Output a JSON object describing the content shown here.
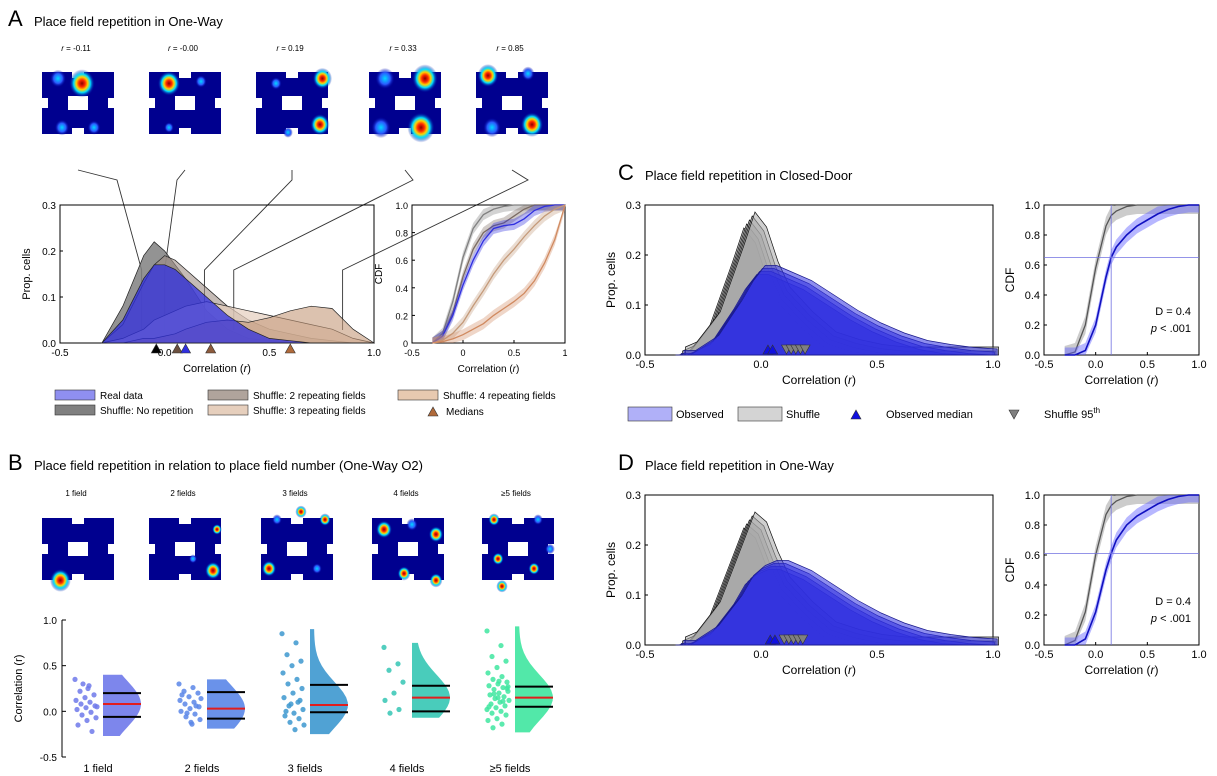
{
  "colors": {
    "real": "#2f2fe0",
    "real_light": "#8f8ff0",
    "shuffle_dark": "#808080",
    "shuffle_light": "#c8c8c8",
    "tan": "#c49a7a",
    "tan_light": "#e6cfbd",
    "brown": "#8c5a3c",
    "median_tri": "#b06a3a",
    "red": "#e21d1d",
    "group_colors": [
      "#6f79ea",
      "#5a86e8",
      "#3d98cf",
      "#35c6b4",
      "#3fe6a0"
    ]
  },
  "panelA": {
    "letter": "A",
    "title": "Place field repetition in One-Way",
    "map_labels": [
      "r = -0.11",
      "r = -0.00",
      "r = 0.19",
      "r = 0.33",
      "r = 0.85"
    ],
    "density": {
      "ylabel": "Prop. cells",
      "xlabel": "Correlation (r)",
      "yticks": [
        "0.0",
        "0.1",
        "0.2",
        "0.3"
      ],
      "xticks": [
        "-0.5",
        "0.0",
        "0.5",
        "1.0"
      ]
    },
    "cdf": {
      "ylabel": "CDF",
      "xlabel": "Correlation (r)",
      "yticks": [
        "0",
        "0.2",
        "0.4",
        "0.6",
        "0.8",
        "1.0"
      ],
      "xticks": [
        "-0.5",
        "0",
        "0.5",
        "1"
      ]
    },
    "legend": [
      {
        "label": "Real data",
        "swatch": "real_light"
      },
      {
        "label": "Shuffle: No repetition",
        "swatch": "shuffle_dark"
      },
      {
        "label": "Shuffle: 2 repeating fields",
        "swatch": "gray_tan"
      },
      {
        "label": "Shuffle: 3 repeating fields",
        "swatch": "tan_light"
      },
      {
        "label": "Shuffle: 4 repeating fields",
        "swatch": "tan"
      },
      {
        "label": "Medians",
        "swatch": "triangle"
      }
    ]
  },
  "panelB": {
    "letter": "B",
    "title": "Place field repetition in relation to place field number (One-Way O2)",
    "map_labels": [
      "1 field",
      "2 fields",
      "3 fields",
      "4 fields",
      "≥5 fields"
    ],
    "ylabel": "Correlation (r)",
    "yticks": [
      "-0.5",
      "0.0",
      "0.5",
      "1.0"
    ],
    "categories": [
      "1 field",
      "2 fields",
      "3 fields",
      "4 fields",
      "≥5 fields"
    ]
  },
  "panelC": {
    "letter": "C",
    "title": "Place field repetition in Closed-Door",
    "density_ylabel": "Prop. cells",
    "density_xlabel": "Correlation (r)",
    "density_yticks": [
      "0.0",
      "0.1",
      "0.2",
      "0.3"
    ],
    "density_xticks": [
      "-0.5",
      "0.0",
      "0.5",
      "1.0"
    ],
    "cdf_ylabel": "CDF",
    "cdf_xlabel": "Correlation (r)",
    "cdf_yticks": [
      "0.0",
      "0.2",
      "0.4",
      "0.6",
      "0.8",
      "1.0"
    ],
    "cdf_xticks": [
      "-0.5",
      "0.0",
      "0.5",
      "1.0"
    ],
    "stat_d": "D = 0.4",
    "stat_p": "p < .001",
    "legend": [
      "Observed",
      "Shuffle",
      "Observed median",
      "Shuffle 95th"
    ]
  },
  "panelD": {
    "letter": "D",
    "title": "Place field repetition in One-Way",
    "density_ylabel": "Prop. cells",
    "density_xlabel": "Correlation (r)",
    "density_yticks": [
      "0.0",
      "0.1",
      "0.2",
      "0.3"
    ],
    "density_xticks": [
      "-0.5",
      "0.0",
      "0.5",
      "1.0"
    ],
    "cdf_ylabel": "CDF",
    "cdf_xlabel": "Correlation (r)",
    "cdf_yticks": [
      "0.0",
      "0.2",
      "0.4",
      "0.6",
      "0.8",
      "1.0"
    ],
    "cdf_xticks": [
      "-0.5",
      "0.0",
      "0.5",
      "1.0"
    ],
    "stat_d": "D = 0.4",
    "stat_p": "p < .001"
  },
  "chart_data": [
    {
      "panel": "A-density",
      "type": "area",
      "xlabel": "Correlation (r)",
      "ylabel": "Prop. cells",
      "xlim": [
        -0.5,
        1.0
      ],
      "ylim": [
        0,
        0.3
      ],
      "x": [
        -0.3,
        -0.2,
        -0.1,
        -0.05,
        0.0,
        0.05,
        0.1,
        0.2,
        0.3,
        0.4,
        0.5,
        0.6,
        0.7,
        0.8,
        0.9,
        1.0
      ],
      "series": [
        {
          "name": "Shuffle: No repetition",
          "values": [
            0.0,
            0.08,
            0.19,
            0.22,
            0.2,
            0.17,
            0.14,
            0.07,
            0.03,
            0.01,
            0.005,
            0.0,
            0.0,
            0.0,
            0.0,
            0.0
          ]
        },
        {
          "name": "Shuffle: 2 repeating fields",
          "values": [
            0.0,
            0.04,
            0.13,
            0.17,
            0.19,
            0.18,
            0.16,
            0.12,
            0.08,
            0.05,
            0.03,
            0.02,
            0.01,
            0.005,
            0.0,
            0.0
          ]
        },
        {
          "name": "Shuffle: 3 repeating fields",
          "values": [
            0.0,
            0.01,
            0.03,
            0.05,
            0.06,
            0.07,
            0.08,
            0.09,
            0.08,
            0.07,
            0.06,
            0.05,
            0.04,
            0.03,
            0.01,
            0.0
          ]
        },
        {
          "name": "Shuffle: 4 repeating fields",
          "values": [
            0.0,
            0.0,
            0.01,
            0.01,
            0.015,
            0.02,
            0.03,
            0.045,
            0.05,
            0.045,
            0.055,
            0.07,
            0.08,
            0.075,
            0.03,
            0.0
          ]
        },
        {
          "name": "Real data",
          "values": [
            0.0,
            0.05,
            0.14,
            0.17,
            0.17,
            0.16,
            0.14,
            0.1,
            0.06,
            0.03,
            0.01,
            0.005,
            0.0,
            0.0,
            0.0,
            0.0
          ]
        }
      ],
      "medians": [
        {
          "name": "Shuffle: No repetition",
          "x": -0.04
        },
        {
          "name": "Shuffle: 2 repeating fields",
          "x": 0.06
        },
        {
          "name": "Real data",
          "x": 0.1
        },
        {
          "name": "Shuffle: 3 repeating fields",
          "x": 0.22
        },
        {
          "name": "Shuffle: 4 repeating fields",
          "x": 0.6
        }
      ]
    },
    {
      "panel": "A-cdf",
      "type": "line",
      "xlabel": "Correlation (r)",
      "ylabel": "CDF",
      "xlim": [
        -0.5,
        1.0
      ],
      "ylim": [
        0,
        1.0
      ],
      "x": [
        -0.3,
        -0.2,
        -0.1,
        0.0,
        0.1,
        0.2,
        0.3,
        0.4,
        0.5,
        0.6,
        0.7,
        0.8,
        0.9,
        1.0
      ],
      "series": [
        {
          "name": "Shuffle: No repetition",
          "values": [
            0.0,
            0.07,
            0.3,
            0.62,
            0.83,
            0.93,
            0.97,
            0.99,
            1.0,
            1.0,
            1.0,
            1.0,
            1.0,
            1.0
          ]
        },
        {
          "name": "Shuffle: 2 repeating fields",
          "values": [
            0.0,
            0.05,
            0.22,
            0.48,
            0.68,
            0.8,
            0.85,
            0.87,
            0.92,
            0.97,
            1.0,
            1.0,
            1.0,
            1.0
          ]
        },
        {
          "name": "Real data",
          "values": [
            0.0,
            0.05,
            0.2,
            0.42,
            0.6,
            0.74,
            0.83,
            0.85,
            0.86,
            0.9,
            0.96,
            0.99,
            1.0,
            1.0
          ]
        },
        {
          "name": "Shuffle: 3 repeating fields",
          "values": [
            0.0,
            0.02,
            0.07,
            0.15,
            0.27,
            0.38,
            0.5,
            0.6,
            0.68,
            0.77,
            0.85,
            0.92,
            0.97,
            1.0
          ]
        },
        {
          "name": "Shuffle: 4 repeating fields",
          "values": [
            0.0,
            0.01,
            0.03,
            0.06,
            0.1,
            0.14,
            0.2,
            0.25,
            0.3,
            0.36,
            0.45,
            0.58,
            0.75,
            1.0
          ]
        }
      ]
    },
    {
      "panel": "B",
      "type": "scatter",
      "ylabel": "Correlation (r)",
      "ylim": [
        -0.5,
        1.0
      ],
      "categories": [
        "1 field",
        "2 fields",
        "3 fields",
        "4 fields",
        "≥5 fields"
      ],
      "medians": [
        0.08,
        0.03,
        0.07,
        0.15,
        0.15
      ],
      "q1": [
        -0.06,
        -0.08,
        -0.01,
        0.0,
        0.05
      ],
      "q3": [
        0.2,
        0.21,
        0.29,
        0.28,
        0.27
      ],
      "points": [
        [
          0.35,
          0.28,
          0.22,
          0.18,
          0.15,
          0.12,
          0.1,
          0.08,
          0.06,
          0.04,
          0.02,
          -0.01,
          -0.04,
          -0.07,
          -0.1,
          -0.15,
          -0.22,
          0.3,
          0.05,
          0.25
        ],
        [
          0.3,
          0.26,
          0.22,
          0.2,
          0.16,
          0.12,
          0.1,
          0.08,
          0.05,
          0.03,
          0.0,
          -0.03,
          -0.06,
          -0.09,
          -0.12,
          0.18,
          0.06,
          -0.02,
          0.14,
          -0.14
        ],
        [
          0.85,
          0.75,
          0.62,
          0.55,
          0.5,
          0.42,
          0.35,
          0.3,
          0.25,
          0.2,
          0.15,
          0.1,
          0.06,
          0.02,
          -0.02,
          -0.05,
          -0.08,
          -0.12,
          -0.15,
          -0.2,
          0.0,
          0.12,
          0.08
        ],
        [
          0.7,
          0.52,
          0.45,
          0.32,
          0.2,
          0.12,
          0.02,
          -0.02
        ],
        [
          0.88,
          0.72,
          0.6,
          0.55,
          0.48,
          0.42,
          0.38,
          0.35,
          0.32,
          0.3,
          0.28,
          0.26,
          0.24,
          0.22,
          0.2,
          0.18,
          0.16,
          0.14,
          0.12,
          0.1,
          0.08,
          0.06,
          0.04,
          0.02,
          0.0,
          -0.02,
          -0.04,
          -0.08,
          -0.1,
          -0.14,
          -0.18,
          0.25,
          0.15,
          0.05,
          0.11,
          0.19,
          0.27,
          0.33
        ]
      ]
    },
    {
      "panel": "C-density",
      "type": "area",
      "xlabel": "Correlation (r)",
      "ylabel": "Prop. cells",
      "xlim": [
        -0.5,
        1.0
      ],
      "ylim": [
        0,
        0.3
      ],
      "x": [
        -0.35,
        -0.3,
        -0.2,
        -0.1,
        -0.05,
        0.0,
        0.05,
        0.1,
        0.2,
        0.3,
        0.4,
        0.5,
        0.6,
        0.7,
        0.8,
        0.9,
        1.0
      ],
      "series": [
        {
          "name": "Shuffle",
          "values": [
            0.0,
            0.01,
            0.07,
            0.2,
            0.27,
            0.24,
            0.17,
            0.12,
            0.07,
            0.03,
            0.015,
            0.005,
            0.0,
            0.0,
            0.0,
            0.0,
            0.0
          ]
        },
        {
          "name": "Observed",
          "values": [
            0.0,
            0.0,
            0.03,
            0.1,
            0.14,
            0.17,
            0.17,
            0.16,
            0.14,
            0.11,
            0.08,
            0.055,
            0.035,
            0.02,
            0.012,
            0.006,
            0.003
          ]
        }
      ],
      "observed_median": [
        0.03,
        0.05
      ],
      "shuffle_95th": [
        0.11,
        0.13,
        0.15,
        0.17,
        0.19
      ]
    },
    {
      "panel": "C-cdf",
      "type": "line",
      "xlabel": "Correlation (r)",
      "ylabel": "CDF",
      "xlim": [
        -0.5,
        1.0
      ],
      "ylim": [
        0,
        1.0
      ],
      "x": [
        -0.3,
        -0.2,
        -0.1,
        0.0,
        0.1,
        0.15,
        0.2,
        0.3,
        0.4,
        0.5,
        0.6,
        0.7,
        0.8,
        0.9,
        1.0
      ],
      "series": [
        {
          "name": "Shuffle",
          "values": [
            0.0,
            0.02,
            0.2,
            0.58,
            0.86,
            0.93,
            0.96,
            0.99,
            1.0,
            1.0,
            1.0,
            1.0,
            1.0,
            1.0,
            1.0
          ]
        },
        {
          "name": "Observed",
          "values": [
            0.0,
            0.0,
            0.03,
            0.2,
            0.52,
            0.65,
            0.72,
            0.8,
            0.86,
            0.9,
            0.94,
            0.97,
            0.99,
            1.0,
            1.0
          ]
        }
      ],
      "reference": {
        "x": 0.15,
        "y": 0.65
      }
    },
    {
      "panel": "D-density",
      "type": "area",
      "xlabel": "Correlation (r)",
      "ylabel": "Prop. cells",
      "xlim": [
        -0.5,
        1.0
      ],
      "ylim": [
        0,
        0.3
      ],
      "x": [
        -0.35,
        -0.3,
        -0.2,
        -0.1,
        -0.05,
        0.0,
        0.05,
        0.1,
        0.2,
        0.3,
        0.4,
        0.5,
        0.6,
        0.7,
        0.8,
        0.9,
        1.0
      ],
      "series": [
        {
          "name": "Shuffle",
          "values": [
            0.0,
            0.01,
            0.07,
            0.19,
            0.25,
            0.23,
            0.17,
            0.12,
            0.07,
            0.03,
            0.015,
            0.005,
            0.0,
            0.0,
            0.0,
            0.0,
            0.0
          ]
        },
        {
          "name": "Observed",
          "values": [
            0.0,
            0.0,
            0.03,
            0.09,
            0.13,
            0.15,
            0.16,
            0.16,
            0.14,
            0.11,
            0.08,
            0.055,
            0.035,
            0.02,
            0.012,
            0.006,
            0.003
          ]
        }
      ],
      "observed_median": [
        0.04,
        0.06
      ],
      "shuffle_95th": [
        0.1,
        0.12,
        0.14,
        0.16,
        0.18
      ]
    },
    {
      "panel": "D-cdf",
      "type": "line",
      "xlabel": "Correlation (r)",
      "ylabel": "CDF",
      "xlim": [
        -0.5,
        1.0
      ],
      "ylim": [
        0,
        1.0
      ],
      "x": [
        -0.3,
        -0.2,
        -0.1,
        0.0,
        0.1,
        0.15,
        0.2,
        0.3,
        0.4,
        0.5,
        0.6,
        0.7,
        0.8,
        0.9,
        1.0
      ],
      "series": [
        {
          "name": "Shuffle",
          "values": [
            0.0,
            0.03,
            0.22,
            0.6,
            0.87,
            0.93,
            0.96,
            0.99,
            1.0,
            1.0,
            1.0,
            1.0,
            1.0,
            1.0,
            1.0
          ]
        },
        {
          "name": "Observed",
          "values": [
            0.0,
            0.0,
            0.04,
            0.22,
            0.5,
            0.61,
            0.7,
            0.8,
            0.86,
            0.9,
            0.94,
            0.97,
            0.99,
            1.0,
            1.0
          ]
        }
      ],
      "reference": {
        "x": 0.15,
        "y": 0.61
      }
    }
  ]
}
